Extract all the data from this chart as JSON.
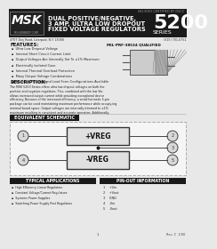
{
  "bg_color": "#e8e8e8",
  "header_bg": "#1a1a1a",
  "msk_logo": "MSK",
  "company": "M.S.KENNEDY CORP.",
  "title_line1": "DUAL POSITIVE/NEGATIVE,",
  "title_line2": "3 AMP, ULTRA LOW DROPOUT",
  "title_line3": "FIXED VOLTAGE REGULATORS",
  "series_number": "5200",
  "series_text": "SERIES",
  "cert_text": "ISO-9001 CERTIFIED BY DSCC",
  "address": "4707 Dey Road, Liverpool, N.Y. 13088",
  "phone": "(315) 701-6751",
  "features_title": "FEATURES:",
  "features": [
    "Ultra Low Dropout Voltage",
    "Internal Short Circuit Current Limit",
    "Output Voltages Are Internally Set To ±1% Maximum",
    "Electrically Isolated Case",
    "Internal Thermal Overload Protection",
    "Many Output Voltage Combinations",
    "Alternate Package and Lead Form Configurations Available"
  ],
  "mil_text": "MIL-PRF-38534 QUALIFIED",
  "desc_title": "DESCRIPTION:",
  "description": "The MSK 5200 Series offers ultra low dropout voltages on both the positive and negative regulators.  This, combined with the low Vin, allows increased output current while providing exceptional device efficiency.  Because of the increased efficiency, a small hermetic 5-pin package can be used maintaining maximum performance while occupy-ing minimal board space.  Output voltages are internally trimmed to ±1% maximum resulting in consistent and accurate operation.  Additionally, both regulators offer internal short circuit current and thermal limiting, which allows circuit protection and eliminates the need for external components and excessive derating.",
  "schematic_title": "EQUIVALENT SCHEMATIC",
  "plus_vreg": "+VREG",
  "minus_vreg": "-VREG",
  "apps_title": "TYPICAL APPLICATIONS",
  "applications": [
    "High Efficiency Linear Regulators",
    "Constant Voltage/Current Regulators",
    "Systems Power Supplies",
    "Switching Power Supply Post Regulators"
  ],
  "pinout_title": "PIN-OUT INFORMATION",
  "pinout": [
    [
      "1",
      "+Vin"
    ],
    [
      "2",
      "+Vout"
    ],
    [
      "3",
      "GND"
    ],
    [
      "4",
      "-Vin"
    ],
    [
      "5",
      "-Vout"
    ]
  ],
  "page_num": "1",
  "rev_text": "Rev. C  1/00"
}
